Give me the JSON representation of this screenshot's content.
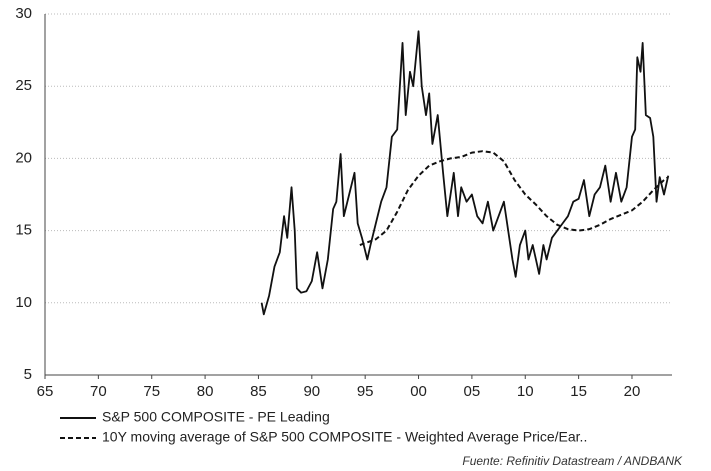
{
  "chart_data": {
    "type": "line",
    "xlim": [
      1965,
      2023.75
    ],
    "xticks": [
      {
        "value": 1965,
        "label": "65"
      },
      {
        "value": 1970,
        "label": "70"
      },
      {
        "value": 1975,
        "label": "75"
      },
      {
        "value": 1980,
        "label": "80"
      },
      {
        "value": 1985,
        "label": "85"
      },
      {
        "value": 1990,
        "label": "90"
      },
      {
        "value": 1995,
        "label": "95"
      },
      {
        "value": 2000,
        "label": "00"
      },
      {
        "value": 2005,
        "label": "05"
      },
      {
        "value": 2010,
        "label": "10"
      },
      {
        "value": 2015,
        "label": "15"
      },
      {
        "value": 2020,
        "label": "20"
      }
    ],
    "ylim": [
      5,
      30
    ],
    "yticks": [
      5,
      10,
      15,
      20,
      25,
      30
    ],
    "grid": true,
    "source": "Fuente: Refinitiv Datastream / ANDBANK",
    "series": [
      {
        "name": "S&P 500 COMPOSITE - PE Leading",
        "color": "#111111",
        "dash": false,
        "x": [
          1985.3,
          1985.5,
          1986,
          1986.5,
          1987,
          1987.4,
          1987.7,
          1988.1,
          1988.4,
          1988.6,
          1989,
          1989.5,
          1990,
          1990.5,
          1991,
          1991.5,
          1992,
          1992.3,
          1992.7,
          1993,
          1993.5,
          1994,
          1994.3,
          1994.7,
          1995.2,
          1995.5,
          1996,
          1996.5,
          1997,
          1997.5,
          1998,
          1998.5,
          1998.8,
          1999.2,
          1999.5,
          2000,
          2000.3,
          2000.7,
          2001,
          2001.3,
          2001.8,
          2002.3,
          2002.7,
          2003,
          2003.3,
          2003.7,
          2004,
          2004.5,
          2005,
          2005.5,
          2006,
          2006.5,
          2007,
          2007.5,
          2008,
          2008.4,
          2008.8,
          2009.1,
          2009.5,
          2010,
          2010.3,
          2010.7,
          2011,
          2011.3,
          2011.7,
          2012,
          2012.5,
          2013,
          2013.5,
          2014,
          2014.5,
          2015,
          2015.5,
          2016,
          2016.5,
          2017,
          2017.5,
          2018,
          2018.5,
          2019,
          2019.5,
          2020,
          2020.3,
          2020.5,
          2020.8,
          2021,
          2021.3,
          2021.7,
          2022,
          2022.3,
          2022.6,
          2023,
          2023.4
        ],
        "values": [
          10,
          9.2,
          10.5,
          12.5,
          13.5,
          16,
          14.5,
          18,
          15,
          11,
          10.7,
          10.8,
          11.5,
          13.5,
          11,
          13,
          16.5,
          17,
          20.3,
          16,
          17.5,
          19,
          15.5,
          14.5,
          13,
          14,
          15.5,
          17,
          18,
          21.5,
          22,
          28,
          23,
          26,
          25,
          28.8,
          25,
          23,
          24.5,
          21,
          23,
          19,
          16,
          17.5,
          19,
          16,
          18,
          17,
          17.5,
          16,
          15.5,
          17,
          15,
          16,
          17,
          15,
          13,
          11.8,
          14,
          15,
          13,
          14,
          13,
          12,
          14,
          13,
          14.5,
          15,
          15.5,
          16,
          17,
          17.2,
          18.5,
          16,
          17.5,
          18,
          19.5,
          17,
          19,
          17,
          18,
          21.5,
          22,
          27,
          26,
          28,
          23,
          22.8,
          21.5,
          17,
          18.7,
          17.5,
          18.8
        ]
      },
      {
        "name": "10Y moving average of S&P 500 COMPOSITE - Weighted Average Price/Ear..",
        "color": "#111111",
        "dash": true,
        "x": [
          1994.5,
          1996,
          1997,
          1998,
          1999,
          2000,
          2001,
          2002,
          2003,
          2004,
          2005,
          2006,
          2007,
          2008,
          2009,
          2010,
          2011,
          2012,
          2013,
          2014,
          2015,
          2016,
          2017,
          2018,
          2019,
          2020,
          2021,
          2022,
          2023,
          2023.4
        ],
        "values": [
          14,
          14.4,
          15,
          16.3,
          17.8,
          18.8,
          19.5,
          19.8,
          20,
          20.1,
          20.4,
          20.5,
          20.4,
          19.8,
          18.5,
          17.5,
          16.8,
          16,
          15.4,
          15.1,
          15,
          15.1,
          15.4,
          15.8,
          16.1,
          16.4,
          17,
          17.8,
          18.5,
          18.7
        ]
      }
    ]
  }
}
